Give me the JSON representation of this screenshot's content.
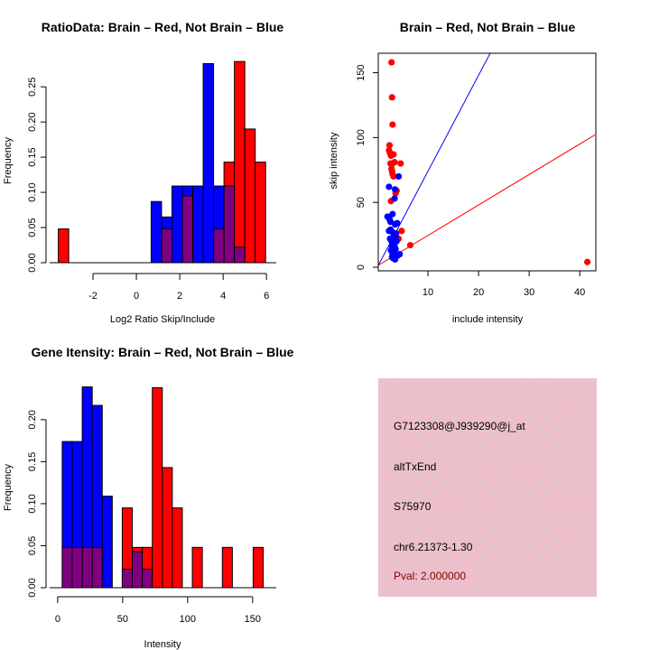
{
  "colors": {
    "brain": "#ff0000",
    "not_brain": "#0000ff",
    "overlap": "#800080",
    "info_box": "#f0c0cc",
    "pval_text": "#8b0000"
  },
  "chart_data": [
    {
      "id": "ratio-hist",
      "type": "bar",
      "title": "RatioData: Brain – Red, Not Brain – Blue",
      "xlabel": "Log2 Ratio Skip/Include",
      "ylabel": "Frequency",
      "xlim": [
        -3.75,
        6.2
      ],
      "ylim": [
        0,
        0.29
      ],
      "xticks": [
        -2,
        0,
        2,
        4,
        6
      ],
      "xtick_labels": [
        "-2",
        "0",
        "2",
        "4",
        "6"
      ],
      "yticks": [
        0,
        0.05,
        0.1,
        0.15,
        0.2,
        0.25
      ],
      "ytick_labels": [
        "0.00",
        "0.05",
        "0.10",
        "0.15",
        "0.20",
        "0.25"
      ],
      "series": [
        {
          "name": "Brain",
          "color": "red",
          "bins": [
            {
              "x0": -3.6,
              "x1": -3.12,
              "value": 0.048
            },
            {
              "x0": 1.16,
              "x1": 1.64,
              "value": 0.048
            },
            {
              "x0": 2.12,
              "x1": 2.6,
              "value": 0.095
            },
            {
              "x0": 3.56,
              "x1": 4.04,
              "value": 0.048
            },
            {
              "x0": 4.04,
              "x1": 4.52,
              "value": 0.143
            },
            {
              "x0": 4.52,
              "x1": 5.0,
              "value": 0.286
            },
            {
              "x0": 5.0,
              "x1": 5.48,
              "value": 0.19
            },
            {
              "x0": 5.48,
              "x1": 5.96,
              "value": 0.143
            }
          ]
        },
        {
          "name": "Not Brain",
          "color": "blue",
          "bins": [
            {
              "x0": 0.68,
              "x1": 1.16,
              "value": 0.087
            },
            {
              "x0": 1.16,
              "x1": 1.64,
              "value": 0.065
            },
            {
              "x0": 1.64,
              "x1": 2.12,
              "value": 0.109
            },
            {
              "x0": 2.12,
              "x1": 2.6,
              "value": 0.109
            },
            {
              "x0": 2.6,
              "x1": 3.08,
              "value": 0.109
            },
            {
              "x0": 3.08,
              "x1": 3.56,
              "value": 0.283
            },
            {
              "x0": 3.56,
              "x1": 4.04,
              "value": 0.109
            },
            {
              "x0": 4.04,
              "x1": 4.52,
              "value": 0.109
            },
            {
              "x0": 4.52,
              "x1": 5.0,
              "value": 0.022
            }
          ]
        }
      ]
    },
    {
      "id": "intensity-scatter",
      "type": "scatter",
      "title": "Brain – Red, Not Brain – Blue",
      "xlabel": "include intensity",
      "ylabel": "skip intensity",
      "xlim": [
        0,
        43
      ],
      "ylim": [
        0,
        165
      ],
      "xticks": [
        10,
        20,
        30,
        40
      ],
      "yticks": [
        0,
        50,
        100,
        150
      ],
      "lines": [
        {
          "name": "blue-reference-line",
          "color": "blue",
          "slope": 7.4,
          "intercept": 0
        },
        {
          "name": "red-reference-line",
          "color": "red",
          "slope": 2.35,
          "intercept": 1
        }
      ],
      "series": [
        {
          "name": "Brain",
          "color": "red",
          "points": [
            [
              2.8,
              158
            ],
            [
              2.9,
              131
            ],
            [
              3.0,
              110
            ],
            [
              2.4,
              94
            ],
            [
              2.3,
              90
            ],
            [
              2.5,
              88
            ],
            [
              2.7,
              86
            ],
            [
              3.2,
              87
            ],
            [
              2.6,
              80
            ],
            [
              3.0,
              80
            ],
            [
              3.4,
              81
            ],
            [
              4.6,
              80
            ],
            [
              2.8,
              76
            ],
            [
              2.9,
              74
            ],
            [
              3.0,
              72
            ],
            [
              3.2,
              70
            ],
            [
              3.8,
              59
            ],
            [
              3.6,
              57
            ],
            [
              2.7,
              51
            ],
            [
              4.8,
              28
            ],
            [
              4.2,
              22
            ],
            [
              6.5,
              17
            ],
            [
              41.5,
              4
            ]
          ]
        },
        {
          "name": "Not Brain",
          "color": "blue",
          "points": [
            [
              4.2,
              70
            ],
            [
              2.3,
              62
            ],
            [
              3.5,
              60
            ],
            [
              3.4,
              53
            ],
            [
              2.0,
              39
            ],
            [
              2.4,
              37
            ],
            [
              3.0,
              41
            ],
            [
              2.6,
              35
            ],
            [
              3.5,
              33
            ],
            [
              3.9,
              34
            ],
            [
              2.3,
              28
            ],
            [
              2.6,
              29
            ],
            [
              3.0,
              27
            ],
            [
              3.3,
              25
            ],
            [
              3.6,
              23
            ],
            [
              2.5,
              22
            ],
            [
              2.8,
              20
            ],
            [
              3.1,
              18
            ],
            [
              3.4,
              16
            ],
            [
              3.8,
              20
            ],
            [
              2.7,
              13
            ],
            [
              3.0,
              11
            ],
            [
              3.3,
              12
            ],
            [
              3.6,
              14
            ],
            [
              4.0,
              9
            ],
            [
              4.4,
              10
            ],
            [
              3.1,
              7
            ],
            [
              3.5,
              6
            ],
            [
              2.9,
              8
            ],
            [
              3.2,
              22
            ],
            [
              2.9,
              16
            ],
            [
              3.7,
              26
            ]
          ]
        }
      ]
    },
    {
      "id": "gene-intensity-hist",
      "type": "bar",
      "title": "Gene Itensity: Brain – Red, Not Brain – Blue",
      "xlabel": "Intensity",
      "ylabel": "Frequency",
      "xlim": [
        -2,
        164
      ],
      "ylim": [
        0,
        0.245
      ],
      "xticks": [
        0,
        50,
        100,
        150
      ],
      "xtick_labels": [
        "0",
        "50",
        "100",
        "150"
      ],
      "yticks": [
        0,
        0.05,
        0.1,
        0.15,
        0.2
      ],
      "ytick_labels": [
        "0.00",
        "0.05",
        "0.10",
        "0.15",
        "0.20"
      ],
      "series": [
        {
          "name": "Brain",
          "color": "red",
          "bins": [
            {
              "x0": 3.5,
              "x1": 11.2,
              "value": 0.048
            },
            {
              "x0": 11.2,
              "x1": 18.9,
              "value": 0.048
            },
            {
              "x0": 18.9,
              "x1": 26.6,
              "value": 0.048
            },
            {
              "x0": 26.6,
              "x1": 34.3,
              "value": 0.048
            },
            {
              "x0": 49.7,
              "x1": 57.4,
              "value": 0.095
            },
            {
              "x0": 57.4,
              "x1": 65.1,
              "value": 0.048
            },
            {
              "x0": 65.1,
              "x1": 72.8,
              "value": 0.048
            },
            {
              "x0": 72.8,
              "x1": 80.5,
              "value": 0.238
            },
            {
              "x0": 80.5,
              "x1": 88.2,
              "value": 0.143
            },
            {
              "x0": 88.2,
              "x1": 95.9,
              "value": 0.095
            },
            {
              "x0": 103.6,
              "x1": 111.3,
              "value": 0.048
            },
            {
              "x0": 126.7,
              "x1": 134.4,
              "value": 0.048
            },
            {
              "x0": 150.4,
              "x1": 158.1,
              "value": 0.048
            }
          ]
        },
        {
          "name": "Not Brain",
          "color": "blue",
          "bins": [
            {
              "x0": 3.5,
              "x1": 11.2,
              "value": 0.174
            },
            {
              "x0": 11.2,
              "x1": 18.9,
              "value": 0.174
            },
            {
              "x0": 18.9,
              "x1": 26.6,
              "value": 0.239
            },
            {
              "x0": 26.6,
              "x1": 34.3,
              "value": 0.217
            },
            {
              "x0": 34.3,
              "x1": 42.0,
              "value": 0.109
            },
            {
              "x0": 49.7,
              "x1": 57.4,
              "value": 0.022
            },
            {
              "x0": 57.4,
              "x1": 65.1,
              "value": 0.043
            },
            {
              "x0": 65.1,
              "x1": 72.8,
              "value": 0.022
            }
          ]
        }
      ]
    }
  ],
  "info_panel": {
    "probe_id": "G7123308@J939290@j_at",
    "event_type": "altTxEnd",
    "accession": "S75970",
    "location": "chr6.21373-1.30",
    "pval": "Pval: 2.000000"
  }
}
